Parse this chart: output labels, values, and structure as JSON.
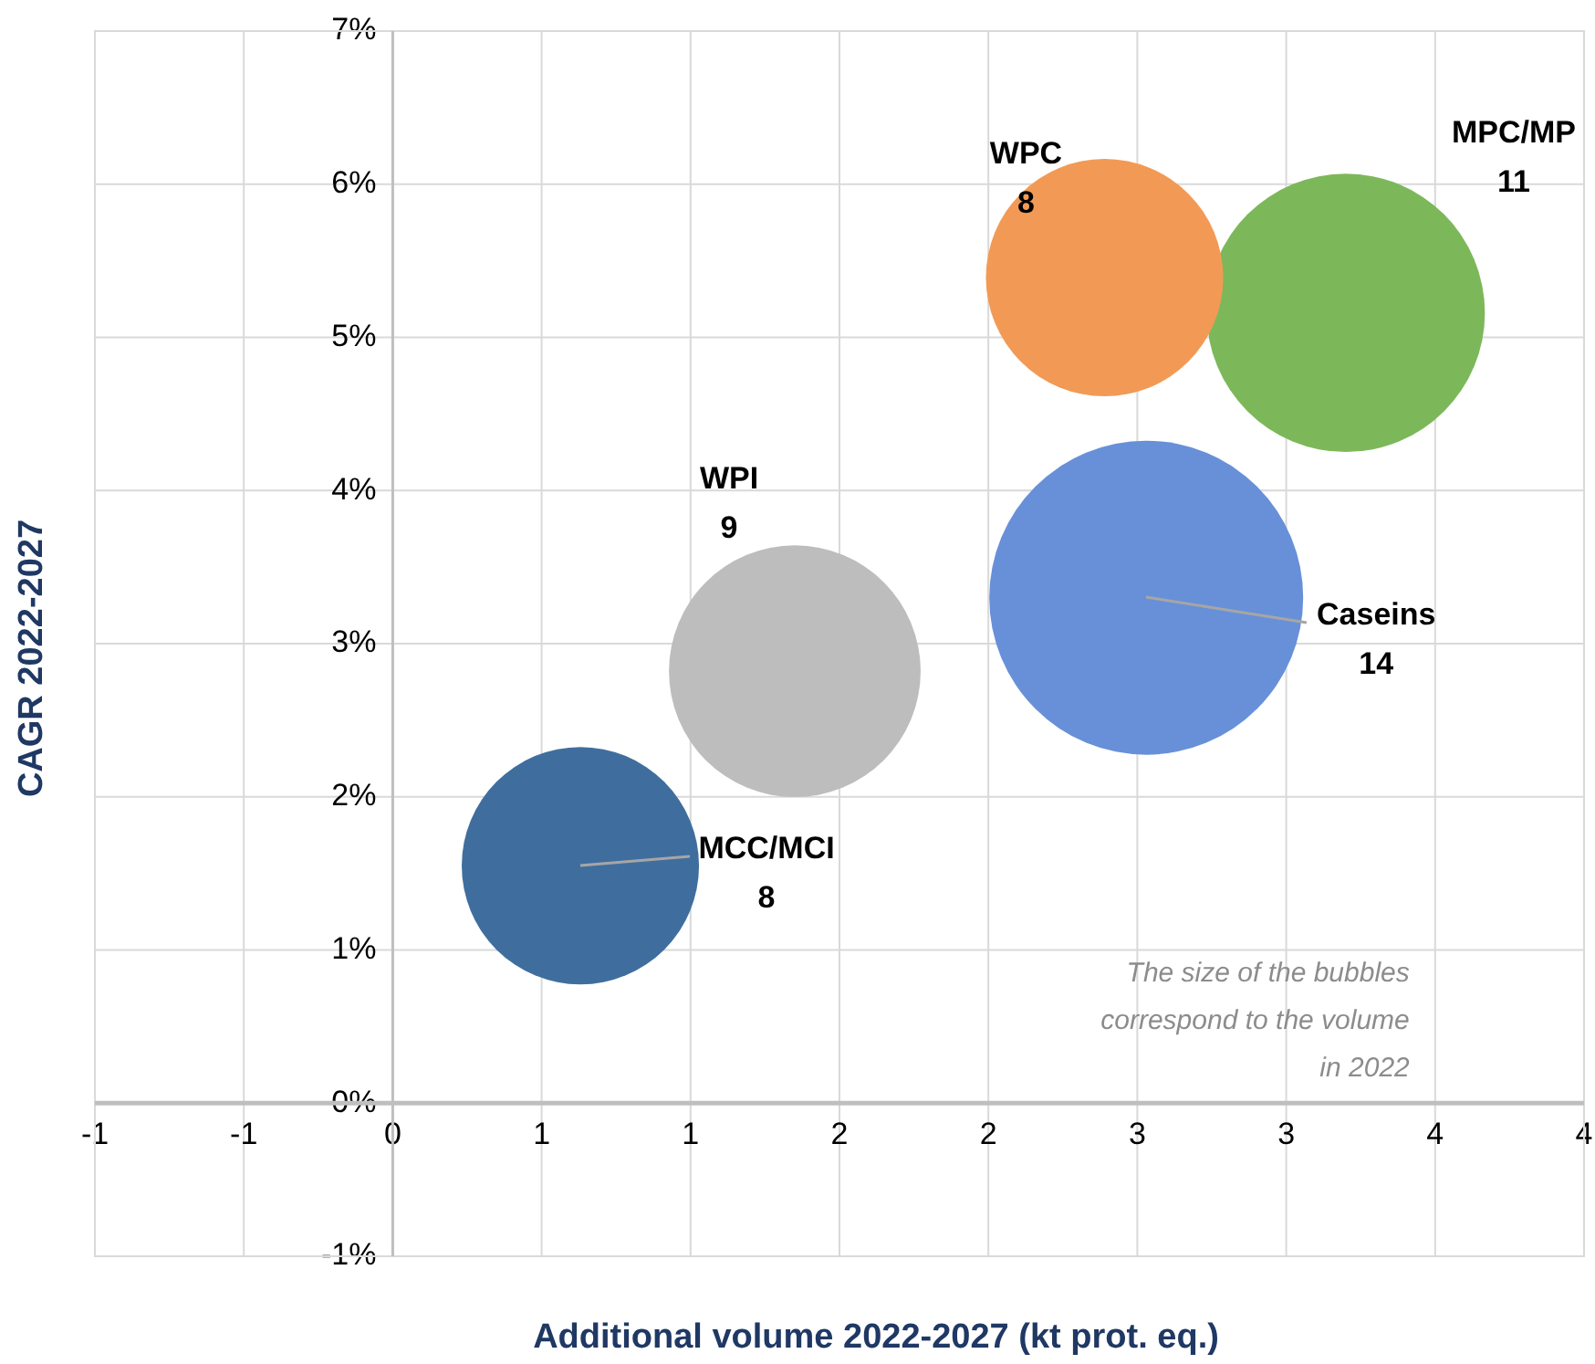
{
  "chart_data": {
    "type": "bubble",
    "xlabel": "Additional volume 2022-2027 (kt prot. eq.)",
    "ylabel": "CAGR 2022-2027",
    "annotations": [
      "The size of the bubbles correspond to the volume in 2022"
    ],
    "series": [
      {
        "name": "MCC/MCI",
        "color": "#3f6e9e",
        "x": [
          0.63
        ],
        "values": [
          1.55
        ],
        "sizes": [
          8
        ],
        "value_labels": [
          "8"
        ]
      },
      {
        "name": "WPI",
        "color": "#bdbdbd",
        "x": [
          1.35
        ],
        "values": [
          2.82
        ],
        "sizes": [
          9
        ],
        "value_labels": [
          "9"
        ]
      },
      {
        "name": "WPC",
        "color": "#f29a55",
        "x": [
          2.39
        ],
        "values": [
          5.39
        ],
        "sizes": [
          8
        ],
        "value_labels": [
          "8"
        ]
      },
      {
        "name": "MPC/MP",
        "color": "#7cb85a",
        "x": [
          3.2
        ],
        "values": [
          5.16
        ],
        "sizes": [
          11
        ],
        "value_labels": [
          "11"
        ]
      },
      {
        "name": "Caseins",
        "color": "#6890d8",
        "x": [
          2.53
        ],
        "values": [
          3.3
        ],
        "sizes": [
          14
        ],
        "value_labels": [
          "14"
        ]
      }
    ],
    "xlim": [
      -1,
      4
    ],
    "xticks": [
      {
        "value": -1,
        "label": "-1"
      },
      {
        "value": -0.5,
        "label": "-1"
      },
      0,
      {
        "value": 0.5,
        "label": "1"
      },
      1,
      {
        "value": 1.5,
        "label": "2"
      },
      2,
      {
        "value": 2.5,
        "label": "3"
      },
      3,
      {
        "value": 3.5,
        "label": "4"
      },
      4
    ],
    "ylim": [
      -1,
      7
    ],
    "yticks": [
      {
        "value": -1,
        "label": "-1%"
      },
      {
        "value": 0,
        "label": "0%"
      },
      {
        "value": 1,
        "label": "1%"
      },
      {
        "value": 2,
        "label": "2%"
      },
      {
        "value": 3,
        "label": "3%"
      },
      {
        "value": 4,
        "label": "4%"
      },
      {
        "value": 5,
        "label": "5%"
      },
      {
        "value": 6,
        "label": "6%"
      },
      {
        "value": 7,
        "label": "7%"
      }
    ],
    "grid": true,
    "legend": false
  }
}
